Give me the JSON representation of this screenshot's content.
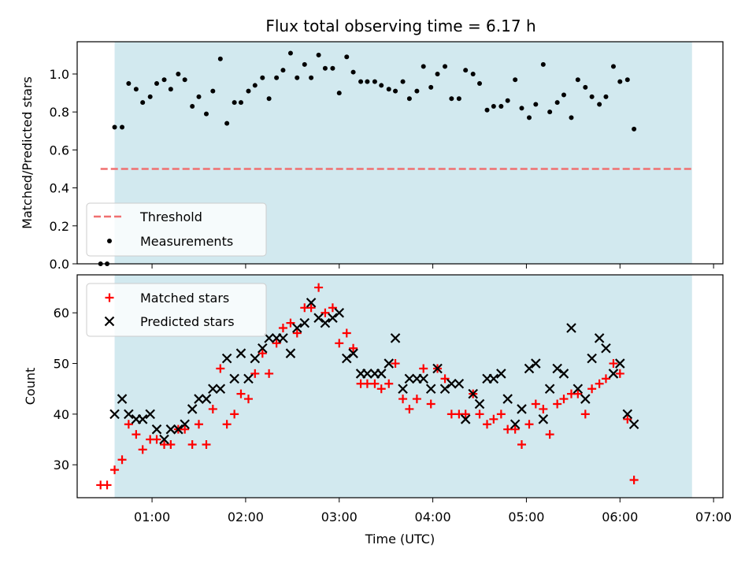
{
  "chart_data": {
    "type": "scatter",
    "title": "Flux total observing time = 6.17 h",
    "xlabel": "Time (UTC)",
    "x_tick_labels": [
      "01:00",
      "02:00",
      "03:00",
      "04:00",
      "05:00",
      "06:00",
      "07:00"
    ],
    "x_ticks_hours": [
      1,
      2,
      3,
      4,
      5,
      6,
      7
    ],
    "xlim_hours": [
      0.2,
      7.1
    ],
    "observing_window_hours": [
      0.6,
      6.77
    ],
    "shade_color": "#d2e9ef",
    "top_panel": {
      "ylabel": "Matched/Predicted stars",
      "ylim": [
        0,
        1.17
      ],
      "y_tick_labels": [
        "0.0",
        "0.2",
        "0.4",
        "0.6",
        "0.8",
        "1.0"
      ],
      "y_ticks": [
        0,
        0.2,
        0.4,
        0.6,
        0.8,
        1.0
      ],
      "threshold": {
        "name": "Threshold",
        "value": 0.5,
        "x_range": [
          0.45,
          6.77
        ],
        "color": "#f07070"
      },
      "measurements": {
        "name": "Measurements",
        "color": "#000000",
        "points": [
          [
            0.45,
            0.0
          ],
          [
            0.52,
            0.0
          ],
          [
            0.6,
            0.72
          ],
          [
            0.68,
            0.72
          ],
          [
            0.75,
            0.95
          ],
          [
            0.83,
            0.92
          ],
          [
            0.9,
            0.85
          ],
          [
            0.98,
            0.88
          ],
          [
            1.05,
            0.95
          ],
          [
            1.13,
            0.97
          ],
          [
            1.2,
            0.92
          ],
          [
            1.28,
            1.0
          ],
          [
            1.35,
            0.97
          ],
          [
            1.43,
            0.83
          ],
          [
            1.5,
            0.88
          ],
          [
            1.58,
            0.79
          ],
          [
            1.65,
            0.91
          ],
          [
            1.73,
            1.08
          ],
          [
            1.8,
            0.74
          ],
          [
            1.88,
            0.85
          ],
          [
            1.95,
            0.85
          ],
          [
            2.03,
            0.91
          ],
          [
            2.1,
            0.94
          ],
          [
            2.18,
            0.98
          ],
          [
            2.25,
            0.87
          ],
          [
            2.33,
            0.98
          ],
          [
            2.4,
            1.02
          ],
          [
            2.48,
            1.11
          ],
          [
            2.55,
            0.98
          ],
          [
            2.63,
            1.05
          ],
          [
            2.7,
            0.98
          ],
          [
            2.78,
            1.1
          ],
          [
            2.85,
            1.03
          ],
          [
            2.93,
            1.03
          ],
          [
            3.0,
            0.9
          ],
          [
            3.08,
            1.09
          ],
          [
            3.15,
            1.01
          ],
          [
            3.23,
            0.96
          ],
          [
            3.3,
            0.96
          ],
          [
            3.38,
            0.96
          ],
          [
            3.45,
            0.94
          ],
          [
            3.53,
            0.92
          ],
          [
            3.6,
            0.91
          ],
          [
            3.68,
            0.96
          ],
          [
            3.75,
            0.87
          ],
          [
            3.83,
            0.91
          ],
          [
            3.9,
            1.04
          ],
          [
            3.98,
            0.93
          ],
          [
            4.05,
            1.0
          ],
          [
            4.13,
            1.04
          ],
          [
            4.2,
            0.87
          ],
          [
            4.28,
            0.87
          ],
          [
            4.35,
            1.02
          ],
          [
            4.43,
            1.0
          ],
          [
            4.5,
            0.95
          ],
          [
            4.58,
            0.81
          ],
          [
            4.65,
            0.83
          ],
          [
            4.73,
            0.83
          ],
          [
            4.8,
            0.86
          ],
          [
            4.88,
            0.97
          ],
          [
            4.95,
            0.82
          ],
          [
            5.03,
            0.77
          ],
          [
            5.1,
            0.84
          ],
          [
            5.18,
            1.05
          ],
          [
            5.25,
            0.8
          ],
          [
            5.33,
            0.85
          ],
          [
            5.4,
            0.89
          ],
          [
            5.48,
            0.77
          ],
          [
            5.55,
            0.97
          ],
          [
            5.63,
            0.93
          ],
          [
            5.7,
            0.88
          ],
          [
            5.78,
            0.84
          ],
          [
            5.85,
            0.88
          ],
          [
            5.93,
            1.04
          ],
          [
            6.0,
            0.96
          ],
          [
            6.08,
            0.97
          ],
          [
            6.15,
            0.71
          ]
        ]
      },
      "legend": {
        "threshold_label": "Threshold",
        "measurements_label": "Measurements"
      }
    },
    "bottom_panel": {
      "ylabel": "Count",
      "ylim": [
        23.5,
        67.5
      ],
      "y_tick_labels": [
        "30",
        "40",
        "50",
        "60"
      ],
      "y_ticks": [
        30,
        40,
        50,
        60
      ],
      "matched": {
        "name": "Matched stars",
        "color": "#ff0000",
        "points": [
          [
            0.45,
            26
          ],
          [
            0.52,
            26
          ],
          [
            0.6,
            29
          ],
          [
            0.68,
            31
          ],
          [
            0.75,
            38
          ],
          [
            0.83,
            36
          ],
          [
            0.9,
            33
          ],
          [
            0.98,
            35
          ],
          [
            1.05,
            35
          ],
          [
            1.13,
            34
          ],
          [
            1.2,
            34
          ],
          [
            1.28,
            37
          ],
          [
            1.35,
            37
          ],
          [
            1.43,
            34
          ],
          [
            1.5,
            38
          ],
          [
            1.58,
            34
          ],
          [
            1.65,
            41
          ],
          [
            1.73,
            49
          ],
          [
            1.8,
            38
          ],
          [
            1.88,
            40
          ],
          [
            1.95,
            44
          ],
          [
            2.03,
            43
          ],
          [
            2.1,
            48
          ],
          [
            2.18,
            52
          ],
          [
            2.25,
            48
          ],
          [
            2.33,
            54
          ],
          [
            2.4,
            57
          ],
          [
            2.48,
            58
          ],
          [
            2.55,
            56
          ],
          [
            2.63,
            61
          ],
          [
            2.7,
            61
          ],
          [
            2.78,
            65
          ],
          [
            2.85,
            60
          ],
          [
            2.93,
            61
          ],
          [
            3.0,
            54
          ],
          [
            3.08,
            56
          ],
          [
            3.15,
            53
          ],
          [
            3.23,
            46
          ],
          [
            3.3,
            46
          ],
          [
            3.38,
            46
          ],
          [
            3.45,
            45
          ],
          [
            3.53,
            46
          ],
          [
            3.6,
            50
          ],
          [
            3.68,
            43
          ],
          [
            3.75,
            41
          ],
          [
            3.83,
            43
          ],
          [
            3.9,
            49
          ],
          [
            3.98,
            42
          ],
          [
            4.05,
            49
          ],
          [
            4.13,
            47
          ],
          [
            4.2,
            40
          ],
          [
            4.28,
            40
          ],
          [
            4.35,
            40
          ],
          [
            4.43,
            44
          ],
          [
            4.5,
            40
          ],
          [
            4.58,
            38
          ],
          [
            4.65,
            39
          ],
          [
            4.73,
            40
          ],
          [
            4.8,
            37
          ],
          [
            4.88,
            37
          ],
          [
            4.95,
            34
          ],
          [
            5.03,
            38
          ],
          [
            5.1,
            42
          ],
          [
            5.18,
            41
          ],
          [
            5.25,
            36
          ],
          [
            5.33,
            42
          ],
          [
            5.4,
            43
          ],
          [
            5.48,
            44
          ],
          [
            5.55,
            44
          ],
          [
            5.63,
            40
          ],
          [
            5.7,
            45
          ],
          [
            5.78,
            46
          ],
          [
            5.85,
            47
          ],
          [
            5.93,
            50
          ],
          [
            6.0,
            48
          ],
          [
            6.08,
            39
          ],
          [
            6.15,
            27
          ]
        ]
      },
      "predicted": {
        "name": "Predicted stars",
        "color": "#000000",
        "points": [
          [
            0.6,
            40
          ],
          [
            0.68,
            43
          ],
          [
            0.75,
            40
          ],
          [
            0.83,
            39
          ],
          [
            0.9,
            39
          ],
          [
            0.98,
            40
          ],
          [
            1.05,
            37
          ],
          [
            1.13,
            35
          ],
          [
            1.2,
            37
          ],
          [
            1.28,
            37
          ],
          [
            1.35,
            38
          ],
          [
            1.43,
            41
          ],
          [
            1.5,
            43
          ],
          [
            1.58,
            43
          ],
          [
            1.65,
            45
          ],
          [
            1.73,
            45
          ],
          [
            1.8,
            51
          ],
          [
            1.88,
            47
          ],
          [
            1.95,
            52
          ],
          [
            2.03,
            47
          ],
          [
            2.1,
            51
          ],
          [
            2.18,
            53
          ],
          [
            2.25,
            55
          ],
          [
            2.33,
            55
          ],
          [
            2.4,
            55
          ],
          [
            2.48,
            52
          ],
          [
            2.55,
            57
          ],
          [
            2.63,
            58
          ],
          [
            2.7,
            62
          ],
          [
            2.78,
            59
          ],
          [
            2.85,
            58
          ],
          [
            2.93,
            59
          ],
          [
            3.0,
            60
          ],
          [
            3.08,
            51
          ],
          [
            3.15,
            52
          ],
          [
            3.23,
            48
          ],
          [
            3.3,
            48
          ],
          [
            3.38,
            48
          ],
          [
            3.45,
            48
          ],
          [
            3.53,
            50
          ],
          [
            3.6,
            55
          ],
          [
            3.68,
            45
          ],
          [
            3.75,
            47
          ],
          [
            3.83,
            47
          ],
          [
            3.9,
            47
          ],
          [
            3.98,
            45
          ],
          [
            4.05,
            49
          ],
          [
            4.13,
            45
          ],
          [
            4.2,
            46
          ],
          [
            4.28,
            46
          ],
          [
            4.35,
            39
          ],
          [
            4.43,
            44
          ],
          [
            4.5,
            42
          ],
          [
            4.58,
            47
          ],
          [
            4.65,
            47
          ],
          [
            4.73,
            48
          ],
          [
            4.8,
            43
          ],
          [
            4.88,
            38
          ],
          [
            4.95,
            41
          ],
          [
            5.03,
            49
          ],
          [
            5.1,
            50
          ],
          [
            5.18,
            39
          ],
          [
            5.25,
            45
          ],
          [
            5.33,
            49
          ],
          [
            5.4,
            48
          ],
          [
            5.48,
            57
          ],
          [
            5.55,
            45
          ],
          [
            5.63,
            43
          ],
          [
            5.7,
            51
          ],
          [
            5.78,
            55
          ],
          [
            5.85,
            53
          ],
          [
            5.93,
            48
          ],
          [
            6.0,
            50
          ],
          [
            6.08,
            40
          ],
          [
            6.15,
            38
          ]
        ]
      },
      "legend": {
        "matched_label": "Matched stars",
        "predicted_label": "Predicted stars"
      }
    }
  }
}
